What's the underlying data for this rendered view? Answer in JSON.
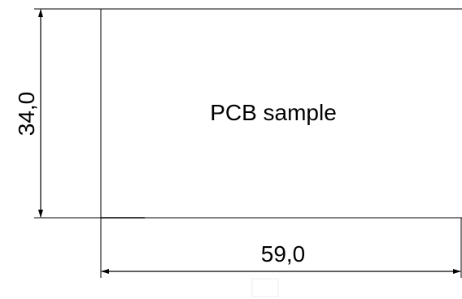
{
  "drawing": {
    "label": "PCB sample",
    "dimensions": {
      "height_label": "34,0",
      "width_label": "59,0"
    },
    "measurements": {
      "height": 34.0,
      "width": 59.0
    }
  }
}
